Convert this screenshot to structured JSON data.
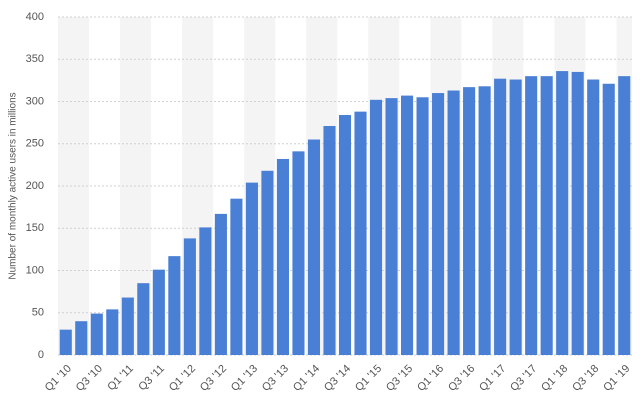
{
  "chart_data": {
    "type": "bar",
    "y_label": "Number of monthly active users in millions",
    "categories": [
      "Q1 '10",
      null,
      "Q3 '10",
      null,
      "Q1 '11",
      null,
      "Q3 '11",
      null,
      "Q1 '12",
      null,
      "Q3 '12",
      null,
      "Q1 '13",
      null,
      "Q3 '13",
      null,
      "Q1 '14",
      null,
      "Q3 '14",
      null,
      "Q1 '15",
      null,
      "Q3 '15",
      null,
      "Q1 '16",
      null,
      "Q3 '16",
      null,
      "Q1 '17",
      null,
      "Q3 '17",
      null,
      "Q1 '18",
      null,
      "Q3 '18",
      null,
      "Q1 '19"
    ],
    "values": [
      30,
      40,
      49,
      54,
      68,
      85,
      101,
      117,
      138,
      151,
      167,
      185,
      204,
      218,
      232,
      241,
      255,
      271,
      284,
      288,
      302,
      304,
      307,
      305,
      310,
      313,
      317,
      318,
      327,
      326,
      330,
      330,
      336,
      335,
      326,
      321,
      330
    ],
    "color": "#4a7fd6",
    "ylim": [
      0,
      400
    ],
    "yticks": [
      0,
      50,
      100,
      150,
      200,
      250,
      300,
      350,
      400
    ],
    "grid": true
  }
}
